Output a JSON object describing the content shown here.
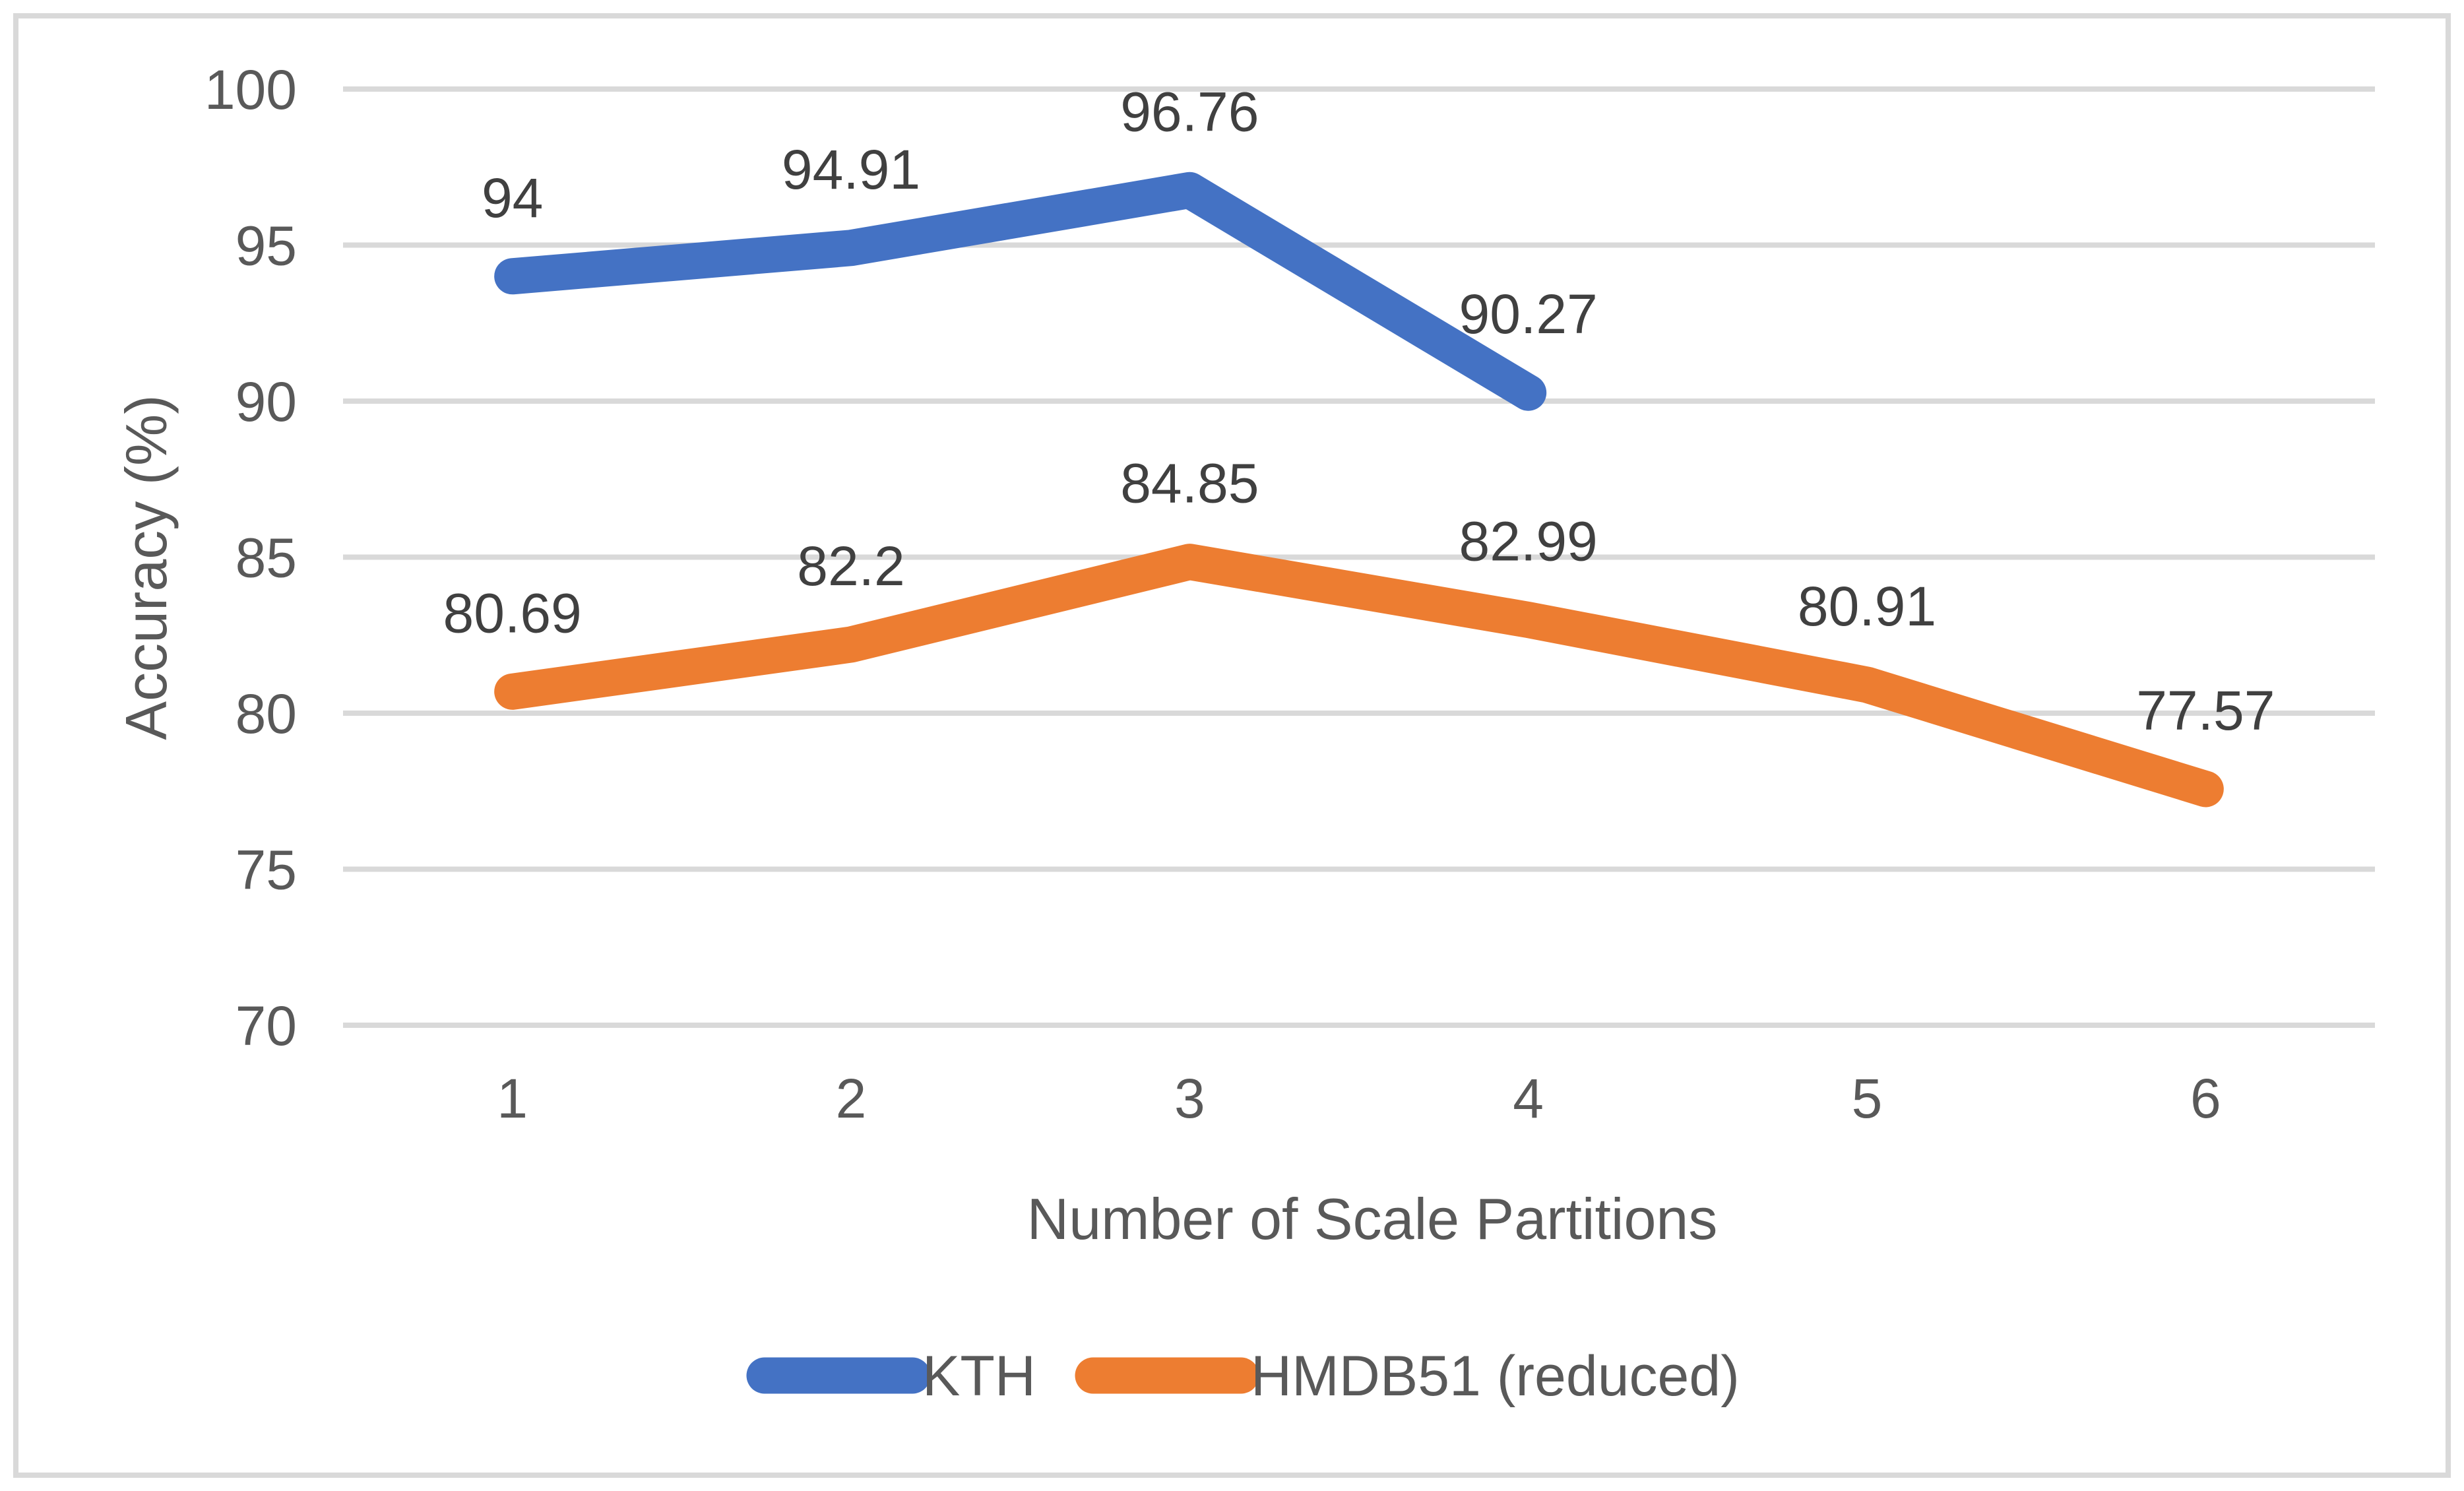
{
  "chart_data": {
    "type": "line",
    "title": "",
    "xlabel": "Number of Scale Partitions",
    "ylabel": "Accuracy (%)",
    "x": [
      "1",
      "2",
      "3",
      "4",
      "5",
      "6"
    ],
    "ylim": [
      70,
      100
    ],
    "y_ticks": [
      100,
      95,
      90,
      85,
      80,
      75,
      70
    ],
    "grid": "horizontal",
    "legend_position": "bottom",
    "series": [
      {
        "name": "KTH",
        "color": "#4472C4",
        "values": [
          94,
          94.91,
          96.76,
          90.27
        ],
        "labels": [
          "94",
          "94.91",
          "96.76",
          "90.27"
        ]
      },
      {
        "name": "HMDB51 (reduced)",
        "color": "#ED7D31",
        "values": [
          80.69,
          82.2,
          84.85,
          82.99,
          80.91,
          77.57
        ],
        "labels": [
          "80.69",
          "82.2",
          "84.85",
          "82.99",
          "80.91",
          "77.57"
        ]
      }
    ],
    "colors": {
      "background": "#FFFFFF",
      "gridline": "#D9D9D9",
      "border": "#D9D9D9",
      "tick_text": "#595959",
      "data_label_text": "#404040"
    }
  }
}
